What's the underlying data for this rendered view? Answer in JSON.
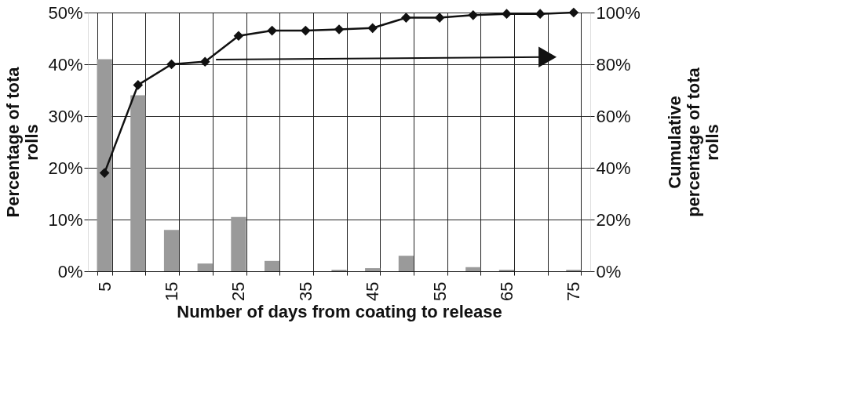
{
  "chart_data": {
    "type": "bar",
    "xlabel": "Number of days from coating to release",
    "ylabel": "Percentage of tota\nrolls",
    "y2label": "Cumulative\npercentage of tota\nrolls",
    "categories": [
      "5",
      null,
      "15",
      null,
      "25",
      null,
      "35",
      null,
      "45",
      null,
      "55",
      null,
      "65",
      null,
      "75"
    ],
    "series": [
      {
        "color": "#9a9a9a",
        "values": [
          41,
          34,
          8,
          1.5,
          10.5,
          2,
          0,
          0.3,
          0.6,
          3,
          0,
          0.8,
          0.3,
          0,
          0.3
        ]
      },
      {
        "type": "line",
        "axis": "y2",
        "color": "#111111",
        "marker": "diamond",
        "line_style": "solid",
        "values": [
          38,
          72,
          80,
          81,
          91,
          93,
          93,
          93.5,
          94,
          98,
          98,
          99,
          99.5,
          99.5,
          100
        ]
      }
    ],
    "ylim": [
      0,
      50
    ],
    "yticks": [
      {
        "value": 0,
        "label": "0%"
      },
      {
        "value": 10,
        "label": "10%"
      },
      {
        "value": 20,
        "label": "20%"
      },
      {
        "value": 30,
        "label": "30%"
      },
      {
        "value": 40,
        "label": "40%"
      },
      {
        "value": 50,
        "label": "50%"
      }
    ],
    "y2lim": [
      0,
      100
    ],
    "y2ticks": [
      {
        "value": 0,
        "label": "0%"
      },
      {
        "value": 20,
        "label": "20%"
      },
      {
        "value": 40,
        "label": "40%"
      },
      {
        "value": 60,
        "label": "60%"
      },
      {
        "value": 80,
        "label": "80%"
      },
      {
        "value": 100,
        "label": "100%"
      }
    ],
    "grid": true
  }
}
